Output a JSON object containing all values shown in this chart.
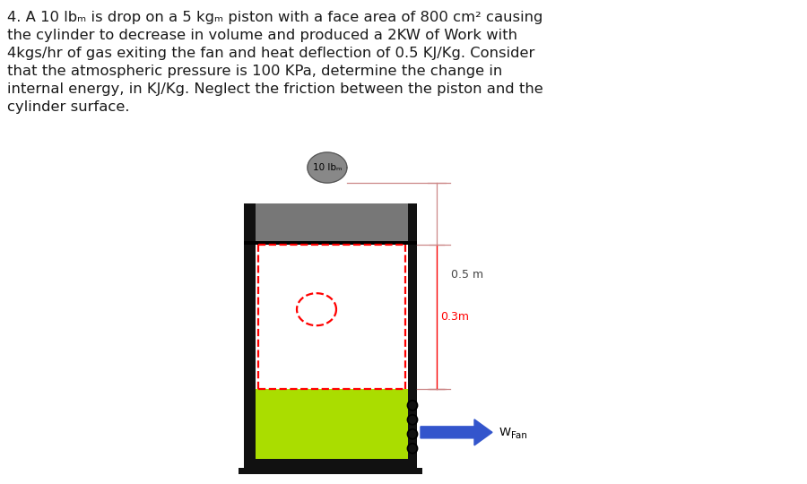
{
  "problem_text": "4. A 10 lbₘ is drop on a 5 kgₘ piston with a face area of 800 cm² causing\nthe cylinder to decrease in volume and produced a 2KW of Work with\n4kgs/hr of gas exiting the fan and heat deflection of 0.5 KJ/Kg. Consider\nthat the atmospheric pressure is 100 KPa, determine the change in\ninternal energy, in KJ/Kg. Neglect the friction between the piston and the\ncylinder surface.",
  "bg_color": "#ffffff",
  "text_color": "#1a1a1a",
  "piston_color": "#777777",
  "green_color": "#aadd00",
  "wall_color": "#111111",
  "ball_color": "#888888",
  "arrow_color": "#3355cc",
  "dim_line_color": "#cc8888",
  "red_color": "#ff0000"
}
